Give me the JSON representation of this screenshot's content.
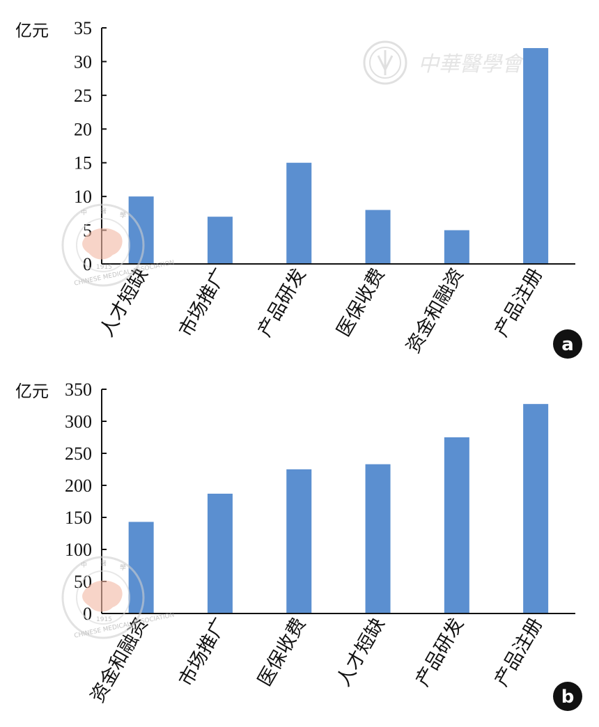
{
  "logo": {
    "top_text": "中華醫學會",
    "seal_text": "CHINESE MEDICAL ASSOCIATION",
    "seal_year": "1915",
    "seal_chars": [
      "中",
      "華",
      "醫",
      "學"
    ]
  },
  "chart_data": [
    {
      "type": "bar",
      "panel_label": "a",
      "unit_label": "亿元",
      "categories": [
        "人才短缺",
        "市场推广",
        "产品研发",
        "医保收费",
        "资金和融资",
        "产品注册"
      ],
      "values": [
        10,
        7,
        15,
        8,
        5,
        32
      ],
      "ylim": [
        0,
        35
      ],
      "yticks": [
        0,
        5,
        10,
        15,
        20,
        25,
        30,
        35
      ],
      "grid": false,
      "colors": {
        "bar": "#5b8fd0"
      }
    },
    {
      "type": "bar",
      "panel_label": "b",
      "unit_label": "亿元",
      "categories": [
        "资金和融资",
        "市场推广",
        "医保收费",
        "人才短缺",
        "产品研发",
        "产品注册"
      ],
      "values": [
        143,
        187,
        225,
        233,
        275,
        327
      ],
      "ylim": [
        0,
        350
      ],
      "yticks": [
        0,
        50,
        100,
        150,
        200,
        250,
        300,
        350
      ],
      "grid": false,
      "colors": {
        "bar": "#5b8fd0"
      }
    }
  ]
}
